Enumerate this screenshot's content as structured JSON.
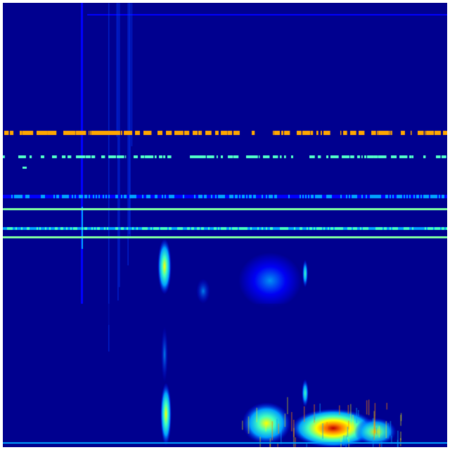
{
  "image": {
    "kind": "spectrogram",
    "colormap": "jet",
    "axes_shown": false,
    "colors": {
      "background": "#00008f",
      "low": "#0000ff",
      "mid_low": "#00a0ff",
      "mid": "#40ffc0",
      "mid_high": "#ffff00",
      "high": "#ff8000",
      "peak": "#c00000",
      "dash_orange": "#ffa500",
      "dash_cyan": "#50ffc8",
      "line_green": "#80ffa0"
    }
  }
}
